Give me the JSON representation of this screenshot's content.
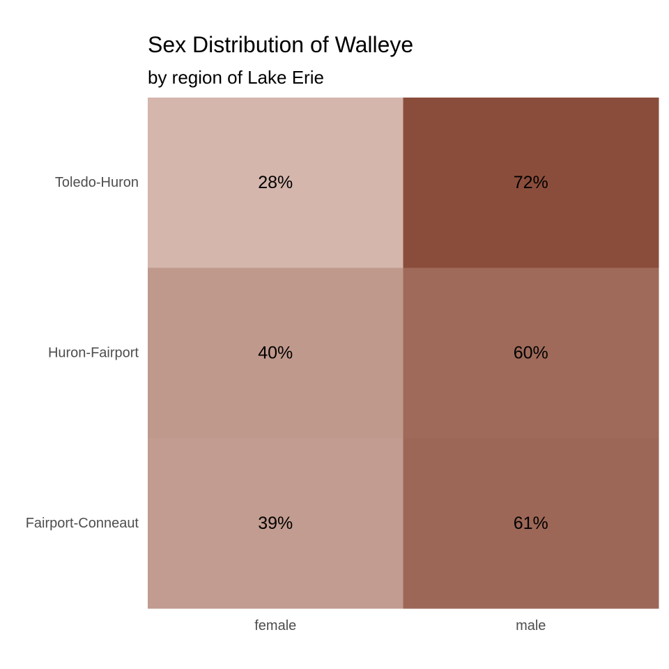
{
  "chart_data": {
    "type": "heatmap",
    "title": "Sex Distribution of Walleye",
    "subtitle": "by region of Lake Erie",
    "x_categories": [
      "female",
      "male"
    ],
    "y_categories": [
      "Toledo-Huron",
      "Huron-Fairport",
      "Fairport-Conneaut"
    ],
    "values": [
      [
        28,
        72
      ],
      [
        40,
        60
      ],
      [
        39,
        61
      ]
    ],
    "value_labels": [
      [
        "28%",
        "72%"
      ],
      [
        "40%",
        "60%"
      ],
      [
        "39%",
        "61%"
      ]
    ],
    "color_low": "#d4b6ac",
    "color_high": "#8b4d3b",
    "grid": false,
    "legend": "none"
  }
}
